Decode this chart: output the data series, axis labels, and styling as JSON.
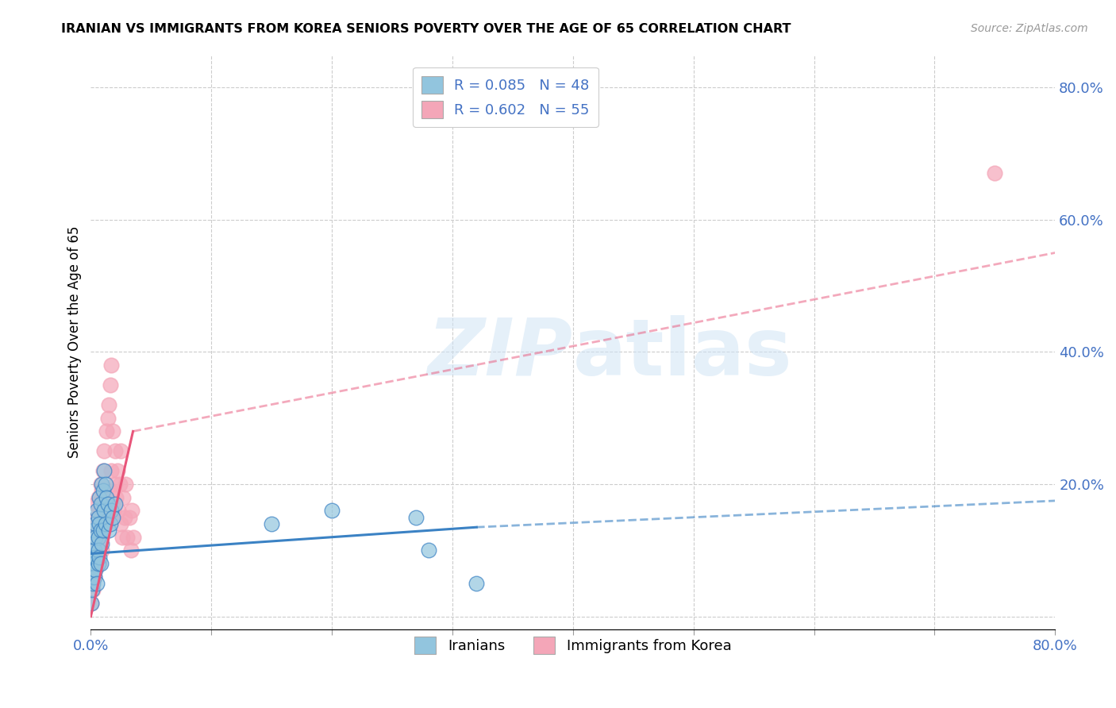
{
  "title": "IRANIAN VS IMMIGRANTS FROM KOREA SENIORS POVERTY OVER THE AGE OF 65 CORRELATION CHART",
  "source": "Source: ZipAtlas.com",
  "ylabel": "Seniors Poverty Over the Age of 65",
  "xlim": [
    0.0,
    0.8
  ],
  "ylim": [
    -0.02,
    0.85
  ],
  "blue_color": "#92c5de",
  "pink_color": "#f4a6b8",
  "blue_line_color": "#3b82c4",
  "pink_line_color": "#e8557a",
  "axis_tick_color": "#4472c4",
  "watermark_color": "#d0e4f5",
  "legend_R_blue": "R = 0.085",
  "legend_N_blue": "N = 48",
  "legend_R_pink": "R = 0.602",
  "legend_N_pink": "N = 55",
  "iranians_x": [
    0.0005,
    0.001,
    0.0012,
    0.0015,
    0.0018,
    0.002,
    0.002,
    0.0022,
    0.0025,
    0.003,
    0.003,
    0.003,
    0.004,
    0.004,
    0.004,
    0.004,
    0.005,
    0.005,
    0.006,
    0.006,
    0.006,
    0.006,
    0.007,
    0.007,
    0.007,
    0.008,
    0.008,
    0.008,
    0.009,
    0.009,
    0.01,
    0.01,
    0.011,
    0.011,
    0.012,
    0.012,
    0.013,
    0.014,
    0.015,
    0.016,
    0.017,
    0.018,
    0.02,
    0.15,
    0.2,
    0.27,
    0.28,
    0.32
  ],
  "iranians_y": [
    0.02,
    0.04,
    0.07,
    0.09,
    0.05,
    0.11,
    0.06,
    0.08,
    0.13,
    0.1,
    0.08,
    0.06,
    0.14,
    0.12,
    0.09,
    0.07,
    0.16,
    0.05,
    0.15,
    0.12,
    0.1,
    0.08,
    0.18,
    0.14,
    0.09,
    0.17,
    0.13,
    0.08,
    0.2,
    0.11,
    0.19,
    0.13,
    0.22,
    0.16,
    0.2,
    0.14,
    0.18,
    0.17,
    0.13,
    0.14,
    0.16,
    0.15,
    0.17,
    0.14,
    0.16,
    0.15,
    0.1,
    0.05
  ],
  "korea_x": [
    0.0005,
    0.001,
    0.0012,
    0.0015,
    0.0018,
    0.002,
    0.002,
    0.0025,
    0.003,
    0.003,
    0.004,
    0.004,
    0.005,
    0.005,
    0.006,
    0.006,
    0.007,
    0.007,
    0.008,
    0.008,
    0.009,
    0.009,
    0.01,
    0.01,
    0.011,
    0.012,
    0.013,
    0.014,
    0.014,
    0.015,
    0.015,
    0.016,
    0.016,
    0.017,
    0.017,
    0.018,
    0.019,
    0.02,
    0.02,
    0.021,
    0.022,
    0.023,
    0.024,
    0.025,
    0.025,
    0.026,
    0.027,
    0.028,
    0.029,
    0.03,
    0.032,
    0.033,
    0.034,
    0.035,
    0.75
  ],
  "korea_y": [
    0.02,
    0.05,
    0.09,
    0.04,
    0.11,
    0.07,
    0.13,
    0.08,
    0.14,
    0.06,
    0.12,
    0.17,
    0.15,
    0.09,
    0.18,
    0.11,
    0.16,
    0.08,
    0.2,
    0.12,
    0.19,
    0.1,
    0.22,
    0.14,
    0.25,
    0.18,
    0.28,
    0.3,
    0.15,
    0.32,
    0.17,
    0.35,
    0.19,
    0.38,
    0.22,
    0.28,
    0.16,
    0.25,
    0.2,
    0.18,
    0.22,
    0.16,
    0.2,
    0.14,
    0.25,
    0.12,
    0.18,
    0.15,
    0.2,
    0.12,
    0.15,
    0.1,
    0.16,
    0.12,
    0.67
  ],
  "blue_trend_x_start": 0.0,
  "blue_trend_x_solid_end": 0.32,
  "blue_trend_x_end": 0.8,
  "blue_trend_y_start": 0.095,
  "blue_trend_y_solid_end": 0.135,
  "blue_trend_y_end": 0.175,
  "pink_trend_x_start": 0.0,
  "pink_trend_x_solid_end": 0.035,
  "pink_trend_x_end": 0.8,
  "pink_trend_y_start": 0.0,
  "pink_trend_y_solid_end": 0.28,
  "pink_trend_y_end": 0.55,
  "grid_color": "#cccccc",
  "grid_xticks": [
    0.1,
    0.2,
    0.3,
    0.4,
    0.5,
    0.6,
    0.7
  ],
  "grid_yticks": [
    0.2,
    0.4,
    0.6,
    0.8
  ]
}
